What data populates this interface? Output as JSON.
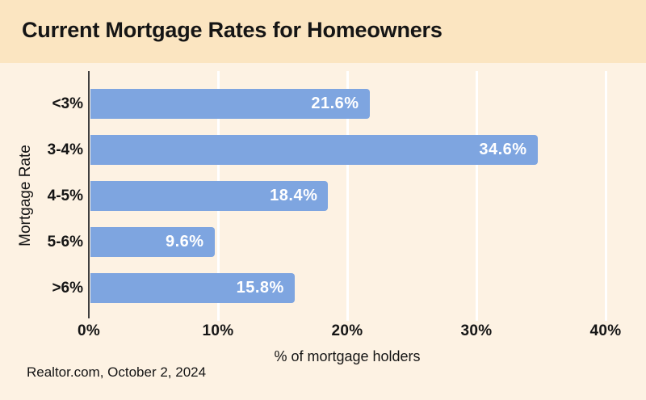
{
  "title": "Current Mortgage Rates for Homeowners",
  "source_note": "Realtor.com, October 2, 2024",
  "colors": {
    "header_bg": "#fbe5c1",
    "chart_bg": "#fdf2e3",
    "bar": "#7ea5e0",
    "text": "#151515",
    "value_label": "#ffffff",
    "gridline": "#ffffff",
    "axis_line": "#3f3f3f"
  },
  "chart_data": {
    "type": "bar",
    "orientation": "horizontal",
    "title": "Current Mortgage Rates for Homeowners",
    "xlabel": "% of mortgage holders",
    "ylabel": "Mortgage Rate",
    "categories": [
      "<3%",
      "3-4%",
      "4-5%",
      "5-6%",
      ">6%"
    ],
    "values": [
      21.6,
      34.6,
      18.4,
      9.6,
      15.8
    ],
    "value_labels": [
      "21.6%",
      "34.6%",
      "18.4%",
      "9.6%",
      "15.8%"
    ],
    "xlim": [
      0,
      40
    ],
    "xticks": [
      0,
      10,
      20,
      30,
      40
    ],
    "xtick_labels": [
      "0%",
      "10%",
      "20%",
      "30%",
      "40%"
    ],
    "grid": "vertical-white-gridlines",
    "legend": "none",
    "value_label_position": "inside-end"
  }
}
